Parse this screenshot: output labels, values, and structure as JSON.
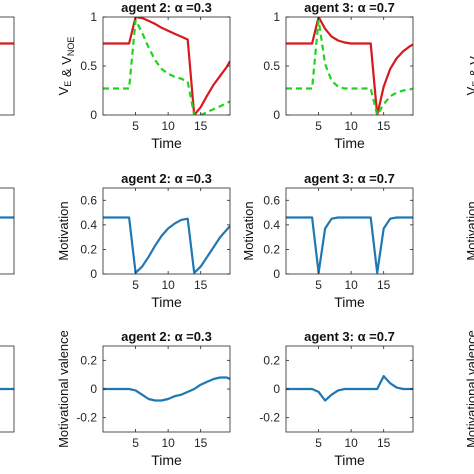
{
  "colors": {
    "red": "#d7191c",
    "green": "#1fd41f",
    "blue": "#1f77b4",
    "axis": "#262626"
  },
  "chart_data": [
    {
      "id": "top-left-partial",
      "type": "line",
      "title": "",
      "xlim": [
        0,
        19.5
      ],
      "ylim": [
        0,
        1
      ],
      "xticks": [],
      "yticks": [],
      "series": [
        {
          "color": "red",
          "style": "solid",
          "width": 2.2,
          "x": [
            0,
            20
          ],
          "y": [
            0.73,
            0.73
          ]
        }
      ]
    },
    {
      "id": "top-mid",
      "type": "line",
      "title": "agent 2: α =0.3",
      "xlabel": "Time",
      "ylabel": "V_E & V_NOE",
      "xlim": [
        0,
        19.5
      ],
      "ylim": [
        0,
        1
      ],
      "xticks": [
        5,
        10,
        15
      ],
      "yticks": [
        0,
        0.5,
        1
      ],
      "ytick_labels": [
        "0",
        "0.5",
        "1"
      ],
      "series": [
        {
          "color": "red",
          "style": "solid",
          "width": 2.2,
          "x": [
            0,
            1,
            2,
            3,
            4,
            5,
            6,
            7,
            8,
            9,
            10,
            11,
            12,
            13,
            14,
            15,
            16,
            17,
            18,
            19,
            19.5
          ],
          "y": [
            0.73,
            0.73,
            0.73,
            0.73,
            0.73,
            1.0,
            0.99,
            0.96,
            0.93,
            0.89,
            0.86,
            0.83,
            0.8,
            0.77,
            0.0,
            0.08,
            0.2,
            0.31,
            0.4,
            0.49,
            0.55
          ]
        },
        {
          "color": "green",
          "style": "dashed",
          "width": 2.2,
          "x": [
            0,
            1,
            2,
            3,
            4,
            5,
            6,
            7,
            8,
            9,
            10,
            11,
            12,
            13,
            14,
            15,
            16,
            17,
            18,
            19,
            19.5
          ],
          "y": [
            0.27,
            0.27,
            0.27,
            0.27,
            0.27,
            0.97,
            0.84,
            0.69,
            0.56,
            0.47,
            0.42,
            0.39,
            0.37,
            0.34,
            0.0,
            0.0,
            0.03,
            0.06,
            0.09,
            0.12,
            0.14
          ]
        }
      ]
    },
    {
      "id": "top-right",
      "type": "line",
      "title": "agent 3: α =0.7",
      "xlabel": "Time",
      "ylabel": "",
      "xlim": [
        0,
        19.5
      ],
      "ylim": [
        0,
        1
      ],
      "xticks": [
        5,
        10,
        15
      ],
      "yticks": [
        0,
        0.5,
        1
      ],
      "ytick_labels": [
        "0",
        "0.5",
        "1"
      ],
      "series": [
        {
          "color": "red",
          "style": "solid",
          "width": 2.2,
          "x": [
            0,
            1,
            2,
            3,
            4,
            5,
            6,
            7,
            8,
            9,
            10,
            11,
            12,
            13,
            14,
            15,
            16,
            17,
            18,
            19,
            19.5
          ],
          "y": [
            0.73,
            0.73,
            0.73,
            0.73,
            0.73,
            1.0,
            0.88,
            0.8,
            0.76,
            0.74,
            0.73,
            0.73,
            0.73,
            0.73,
            0.0,
            0.29,
            0.47,
            0.58,
            0.65,
            0.7,
            0.72
          ]
        },
        {
          "color": "green",
          "style": "dashed",
          "width": 2.2,
          "x": [
            0,
            1,
            2,
            3,
            4,
            5,
            6,
            7,
            8,
            9,
            10,
            11,
            12,
            13,
            14,
            15,
            16,
            17,
            18,
            19,
            19.5
          ],
          "y": [
            0.27,
            0.27,
            0.27,
            0.27,
            0.27,
            0.97,
            0.52,
            0.35,
            0.29,
            0.27,
            0.27,
            0.27,
            0.27,
            0.27,
            0.0,
            0.11,
            0.19,
            0.23,
            0.25,
            0.26,
            0.27
          ]
        }
      ]
    },
    {
      "id": "mid-left-partial",
      "type": "line",
      "title": "",
      "xlim": [
        0,
        19.5
      ],
      "ylim": [
        0,
        0.7
      ],
      "xticks": [],
      "yticks": [],
      "series": [
        {
          "color": "blue",
          "style": "solid",
          "width": 2.2,
          "x": [
            0,
            20
          ],
          "y": [
            0.46,
            0.46
          ]
        }
      ]
    },
    {
      "id": "mid-mid",
      "type": "line",
      "title": "agent 2: α =0.3",
      "xlabel": "Time",
      "ylabel": "Motivation",
      "xlim": [
        0,
        19.5
      ],
      "ylim": [
        0,
        0.7
      ],
      "xticks": [
        5,
        10,
        15
      ],
      "yticks": [
        0,
        0.2,
        0.4,
        0.6
      ],
      "ytick_labels": [
        "0",
        "0.2",
        "0.4",
        "0.6"
      ],
      "series": [
        {
          "color": "blue",
          "style": "solid",
          "width": 2.2,
          "x": [
            0,
            1,
            2,
            3,
            4,
            5,
            6,
            7,
            8,
            9,
            10,
            11,
            12,
            13,
            14,
            15,
            16,
            17,
            18,
            19,
            19.5
          ],
          "y": [
            0.46,
            0.46,
            0.46,
            0.46,
            0.46,
            0.01,
            0.06,
            0.14,
            0.23,
            0.31,
            0.37,
            0.41,
            0.44,
            0.45,
            0.01,
            0.06,
            0.14,
            0.22,
            0.3,
            0.36,
            0.39
          ]
        }
      ]
    },
    {
      "id": "mid-right",
      "type": "line",
      "title": "agent 3: α =0.7",
      "xlabel": "Time",
      "ylabel": "Motivation",
      "xlim": [
        0,
        19.5
      ],
      "ylim": [
        0,
        0.7
      ],
      "xticks": [
        5,
        10,
        15
      ],
      "yticks": [
        0,
        0.2,
        0.4,
        0.6
      ],
      "ytick_labels": [
        "0",
        "0.2",
        "0.4",
        "0.6"
      ],
      "series": [
        {
          "color": "blue",
          "style": "solid",
          "width": 2.2,
          "x": [
            0,
            1,
            2,
            3,
            4,
            5,
            6,
            7,
            8,
            9,
            10,
            11,
            12,
            13,
            14,
            15,
            16,
            17,
            18,
            19,
            19.5
          ],
          "y": [
            0.46,
            0.46,
            0.46,
            0.46,
            0.46,
            0.01,
            0.37,
            0.45,
            0.46,
            0.46,
            0.46,
            0.46,
            0.46,
            0.46,
            0.01,
            0.37,
            0.45,
            0.46,
            0.46,
            0.46,
            0.46
          ]
        }
      ]
    },
    {
      "id": "bot-left-partial",
      "type": "line",
      "title": "",
      "xlim": [
        0,
        19.5
      ],
      "ylim": [
        -0.3,
        0.3
      ],
      "xticks": [],
      "yticks": [],
      "series": [
        {
          "color": "blue",
          "style": "solid",
          "width": 2.2,
          "x": [
            0,
            20
          ],
          "y": [
            0.0,
            0.0
          ]
        }
      ]
    },
    {
      "id": "bot-mid",
      "type": "line",
      "title": "agent 2: α =0.3",
      "xlabel": "Time",
      "ylabel": "Motivational valence",
      "xlim": [
        0,
        19.5
      ],
      "ylim": [
        -0.3,
        0.3
      ],
      "xticks": [
        5,
        10,
        15
      ],
      "yticks": [
        -0.2,
        0,
        0.2
      ],
      "ytick_labels": [
        "-0.2",
        "0",
        "0.2"
      ],
      "series": [
        {
          "color": "blue",
          "style": "solid",
          "width": 2.2,
          "x": [
            0,
            1,
            2,
            3,
            4,
            5,
            6,
            7,
            8,
            9,
            10,
            11,
            12,
            13,
            14,
            15,
            16,
            17,
            18,
            19,
            19.5
          ],
          "y": [
            0,
            0,
            0,
            0,
            0,
            -0.01,
            -0.04,
            -0.07,
            -0.08,
            -0.08,
            -0.07,
            -0.05,
            -0.04,
            -0.02,
            0.0,
            0.03,
            0.05,
            0.07,
            0.08,
            0.08,
            0.07
          ]
        }
      ]
    },
    {
      "id": "bot-right",
      "type": "line",
      "title": "agent 3: α =0.7",
      "xlabel": "Time",
      "ylabel": "",
      "xlim": [
        0,
        19.5
      ],
      "ylim": [
        -0.3,
        0.3
      ],
      "xticks": [
        5,
        10,
        15
      ],
      "yticks": [
        -0.2,
        0,
        0.2
      ],
      "ytick_labels": [
        "-0.2",
        "0",
        "0.2"
      ],
      "series": [
        {
          "color": "blue",
          "style": "solid",
          "width": 2.2,
          "x": [
            0,
            1,
            2,
            3,
            4,
            5,
            6,
            7,
            8,
            9,
            10,
            11,
            12,
            13,
            14,
            15,
            16,
            17,
            18,
            19,
            19.5
          ],
          "y": [
            0,
            0,
            0,
            0,
            0,
            -0.02,
            -0.08,
            -0.04,
            -0.01,
            0,
            0,
            0,
            0,
            0,
            0.0,
            0.09,
            0.04,
            0.01,
            0.0,
            0.0,
            0.0
          ]
        }
      ]
    }
  ],
  "clipped_labels": {
    "top_right_ylabel": "V_E & V_NOE",
    "mid_right_ylabel": "Motivation",
    "bot_right_ylabel": "Motivational valence"
  }
}
